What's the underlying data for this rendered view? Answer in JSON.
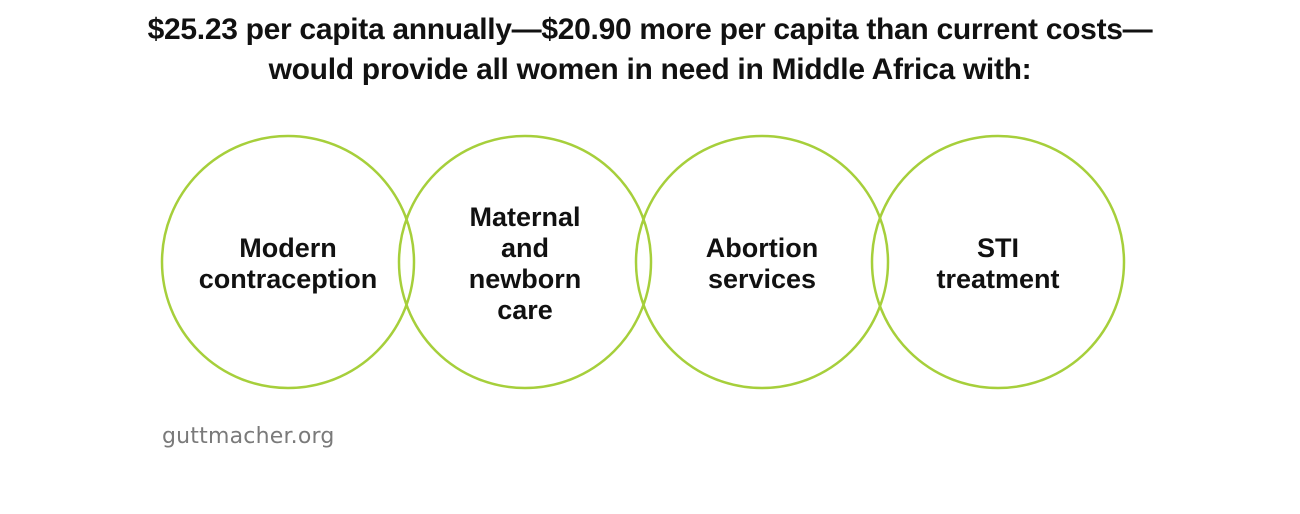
{
  "title": {
    "line1": "$25.23 per capita annually—$20.90 more per capita than current costs—",
    "line2": "would provide all women in need in Middle Africa with:"
  },
  "colors": {
    "circle_stroke": "#a6cf3b",
    "text": "#111111",
    "footer": "#7a7a7a"
  },
  "services": [
    {
      "lines": [
        "Modern",
        "contraception"
      ]
    },
    {
      "lines": [
        "Maternal",
        "and",
        "newborn",
        "care"
      ]
    },
    {
      "lines": [
        "Abortion",
        "services"
      ]
    },
    {
      "lines": [
        "STI",
        "treatment"
      ]
    }
  ],
  "footer": "guttmacher.org"
}
